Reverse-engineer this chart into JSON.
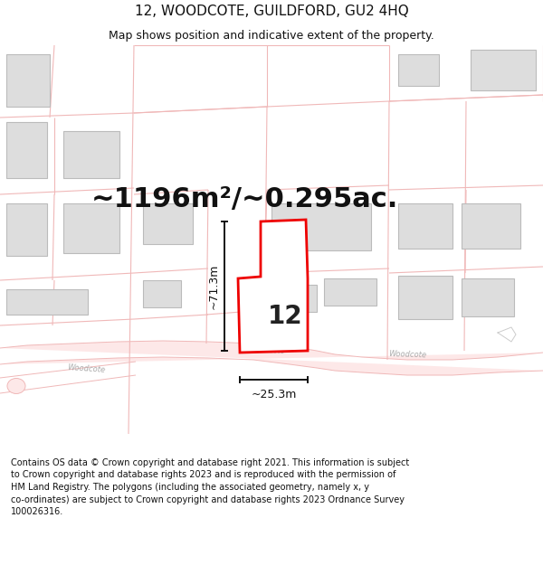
{
  "title": "12, WOODCOTE, GUILDFORD, GU2 4HQ",
  "subtitle": "Map shows position and indicative extent of the property.",
  "area_text": "~1196m²/~0.295ac.",
  "number_label": "12",
  "dim_width": "~25.3m",
  "dim_height": "~71.3m",
  "footer": "Contains OS data © Crown copyright and database right 2021. This information is subject to Crown copyright and database rights 2023 and is reproduced with the permission of HM Land Registry. The polygons (including the associated geometry, namely x, y co-ordinates) are subject to Crown copyright and database rights 2023 Ordnance Survey 100026316.",
  "bg_color": "#ffffff",
  "map_bg": "#ffffff",
  "road_color": "#f0b8b8",
  "plot_line_color": "#f0b8b8",
  "building_fill": "#dddddd",
  "building_stroke": "#bbbbbb",
  "highlight_stroke": "#ee0000",
  "highlight_fill": "#ffffff",
  "dim_color": "#111111",
  "road_label_color": "#aaaaaa",
  "title_fontsize": 11,
  "subtitle_fontsize": 9,
  "area_fontsize": 22,
  "number_fontsize": 20,
  "dim_fontsize": 9,
  "footer_fontsize": 7
}
